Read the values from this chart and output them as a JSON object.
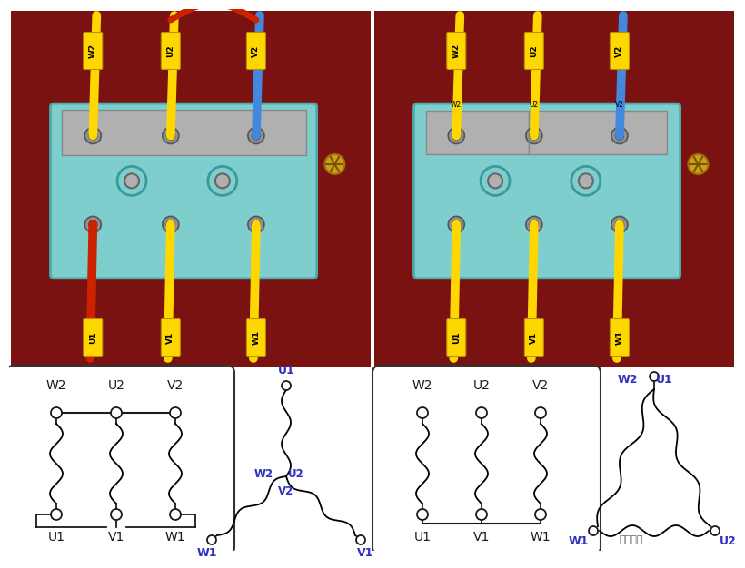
{
  "bg_color": "#ffffff",
  "blue": "#3030C0",
  "black": "#1a1a1a",
  "photo_bg": "#7a1212",
  "teal_board": "#7ecece",
  "silver": "#b0b0b0",
  "yellow_wire": "#FFD700",
  "red_wire": "#CC2200",
  "blue_wire": "#4488DD",
  "gold": "#C8A020",
  "white": "#ffffff",
  "watermark": "技成培训",
  "left_box_labels_top": [
    "W2",
    "U2",
    "V2"
  ],
  "left_box_labels_bot": [
    "U1",
    "V1",
    "W1"
  ],
  "right_box_labels_top": [
    "W2",
    "U2",
    "V2"
  ],
  "right_box_labels_bot": [
    "U1",
    "V1",
    "W1"
  ],
  "star_labels": [
    "U1",
    "W2",
    "U2",
    "V2",
    "W1",
    "V1"
  ],
  "delta_labels": [
    "W2",
    "U1",
    "W1",
    "U2"
  ]
}
